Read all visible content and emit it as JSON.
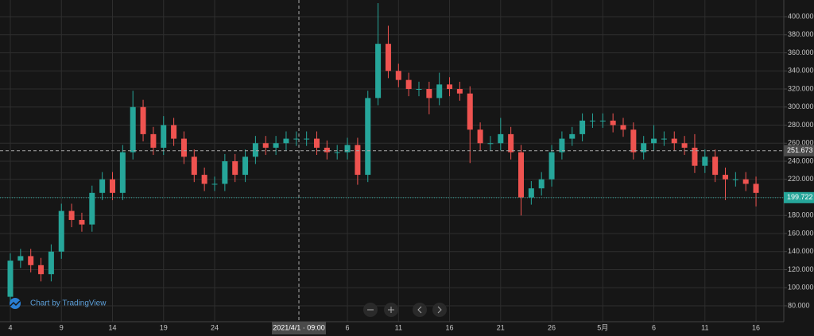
{
  "chart_data": {
    "type": "candlestick",
    "categories": [
      "4",
      null,
      null,
      null,
      null,
      "9",
      null,
      null,
      null,
      null,
      "14",
      null,
      null,
      null,
      null,
      "19",
      null,
      null,
      null,
      null,
      "24",
      null,
      null,
      null,
      null,
      null,
      null,
      null,
      null,
      null,
      null,
      null,
      null,
      "6",
      null,
      null,
      null,
      null,
      "11",
      null,
      null,
      null,
      null,
      "16",
      null,
      null,
      null,
      null,
      "21",
      null,
      null,
      null,
      null,
      "26",
      null,
      null,
      null,
      null,
      "5月",
      null,
      null,
      null,
      null,
      "6",
      null,
      null,
      null,
      null,
      "11",
      null,
      null,
      null,
      null,
      "16"
    ],
    "open": [
      90,
      130,
      135,
      125,
      115,
      140,
      185,
      175,
      170,
      205,
      220,
      205,
      250,
      300,
      270,
      255,
      280,
      265,
      245,
      225,
      215,
      215,
      240,
      225,
      245,
      260,
      255,
      260,
      265,
      265,
      265,
      255,
      250,
      250,
      258,
      225,
      310,
      370,
      340,
      330,
      320,
      320,
      310,
      325,
      320,
      315,
      275,
      260,
      260,
      270,
      250,
      200,
      210,
      220,
      250,
      265,
      270,
      285,
      285,
      285,
      280,
      275,
      250,
      260,
      265,
      265,
      260,
      255,
      235,
      245,
      225,
      220,
      220,
      215
    ],
    "high": [
      138,
      143,
      143,
      133,
      148,
      193,
      193,
      183,
      213,
      228,
      228,
      258,
      318,
      308,
      278,
      290,
      288,
      273,
      253,
      233,
      223,
      248,
      248,
      253,
      268,
      268,
      268,
      273,
      273,
      273,
      273,
      263,
      258,
      266,
      266,
      318,
      415,
      390,
      348,
      338,
      328,
      328,
      338,
      333,
      328,
      323,
      283,
      268,
      288,
      278,
      258,
      218,
      228,
      258,
      273,
      278,
      293,
      293,
      293,
      293,
      288,
      283,
      268,
      280,
      273,
      273,
      268,
      270,
      253,
      253,
      233,
      228,
      228,
      223
    ],
    "low": [
      82,
      122,
      117,
      107,
      107,
      132,
      167,
      162,
      162,
      197,
      197,
      197,
      242,
      262,
      247,
      247,
      257,
      237,
      217,
      207,
      207,
      207,
      217,
      217,
      237,
      247,
      247,
      252,
      257,
      257,
      247,
      242,
      242,
      242,
      214,
      217,
      302,
      332,
      322,
      312,
      312,
      292,
      302,
      312,
      307,
      238,
      252,
      252,
      252,
      242,
      180,
      192,
      202,
      212,
      242,
      257,
      262,
      277,
      277,
      272,
      267,
      242,
      242,
      252,
      257,
      252,
      247,
      227,
      227,
      217,
      197,
      212,
      207,
      190
    ],
    "close": [
      130,
      135,
      125,
      115,
      140,
      185,
      175,
      170,
      205,
      220,
      205,
      250,
      300,
      270,
      255,
      280,
      265,
      245,
      225,
      215,
      215,
      240,
      225,
      245,
      260,
      255,
      260,
      265,
      265,
      265,
      255,
      250,
      250,
      258,
      225,
      310,
      370,
      340,
      330,
      320,
      320,
      310,
      325,
      320,
      315,
      275,
      260,
      260,
      270,
      250,
      200,
      210,
      220,
      250,
      265,
      270,
      285,
      285,
      285,
      280,
      275,
      250,
      260,
      265,
      265,
      260,
      255,
      235,
      245,
      225,
      220,
      220,
      215,
      205
    ],
    "up_color": "#26a69a",
    "down_color": "#ef5350",
    "ylim": [
      62.4,
      418.5
    ],
    "yticks": [
      {
        "value": 80,
        "label": "80.000"
      },
      {
        "value": 100,
        "label": "100.000"
      },
      {
        "value": 120,
        "label": "120.000"
      },
      {
        "value": 140,
        "label": "140.000"
      },
      {
        "value": 160,
        "label": "160.000"
      },
      {
        "value": 180,
        "label": "180.000"
      },
      {
        "value": 200,
        "label": "200.000"
      },
      {
        "value": 220,
        "label": "220.000"
      },
      {
        "value": 240,
        "label": "240.000"
      },
      {
        "value": 260,
        "label": "260.000"
      },
      {
        "value": 280,
        "label": "280.000"
      },
      {
        "value": 300,
        "label": "300.000"
      },
      {
        "value": 320,
        "label": "320.000"
      },
      {
        "value": 340,
        "label": "340.000"
      },
      {
        "value": 360,
        "label": "360.000"
      },
      {
        "value": 380,
        "label": "380.000"
      },
      {
        "value": 400,
        "label": "400.000"
      }
    ],
    "grid": true,
    "crosshair": {
      "x_label": "2021/4/1 · 09:00",
      "price": 251.673
    },
    "last_price": 199.722,
    "watermark": "Chart by TradingView"
  }
}
